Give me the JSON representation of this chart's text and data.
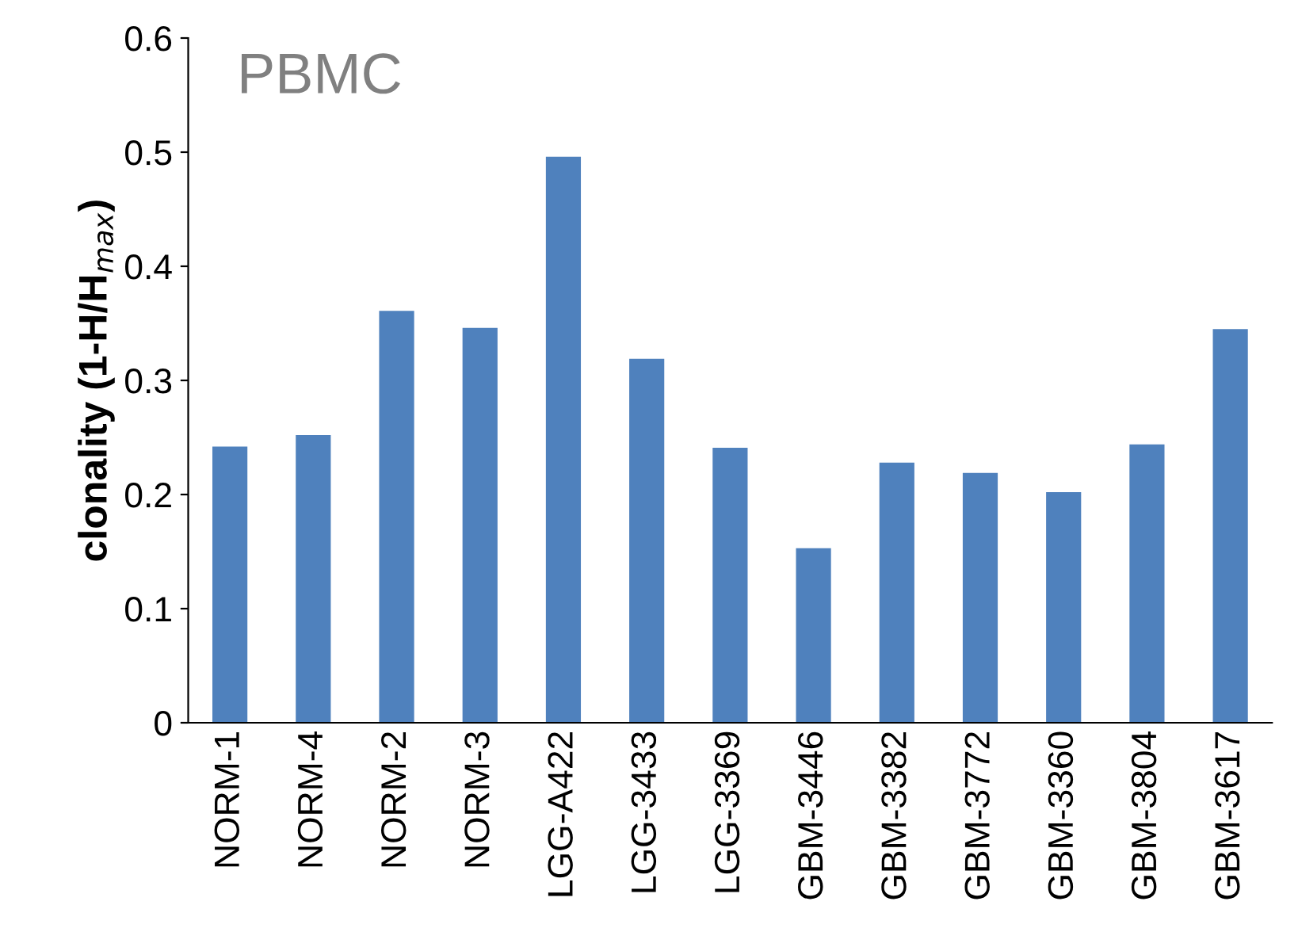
{
  "chart_data": {
    "type": "bar",
    "title": "PBMC",
    "ylabel": "clonality (1-H/H$_{max}$)",
    "categories": [
      "NORM-1",
      "NORM-4",
      "NORM-2",
      "NORM-3",
      "LGG-A422",
      "LGG-3433",
      "LGG-3369",
      "GBM-3446",
      "GBM-3382",
      "GBM-3772",
      "GBM-3360",
      "GBM-3804",
      "GBM-3617"
    ],
    "values": [
      0.242,
      0.252,
      0.361,
      0.346,
      0.496,
      0.319,
      0.241,
      0.153,
      0.228,
      0.219,
      0.202,
      0.244,
      0.345
    ],
    "color": "#4f81bd",
    "ylim": [
      0,
      0.6
    ],
    "yticks": [
      0,
      0.1,
      0.2,
      0.3,
      0.4,
      0.5,
      0.6
    ],
    "grid": false,
    "legend": false
  }
}
